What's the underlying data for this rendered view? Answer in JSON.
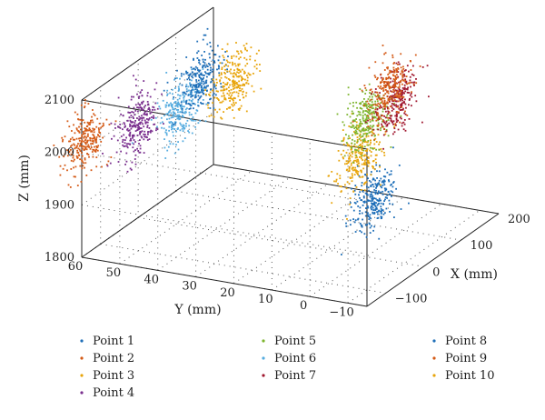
{
  "chart_data": {
    "type": "scatter",
    "projection": "3d",
    "grid": true,
    "legend_position": "bottom",
    "x_axis": {
      "label": "X (mm)",
      "range": [
        -150,
        200
      ],
      "ticks": [
        "−100",
        "0",
        "100",
        "200"
      ],
      "tick_values": [
        -100,
        0,
        100,
        200
      ]
    },
    "y_axis": {
      "label": "Y (mm)",
      "range": [
        -15,
        60
      ],
      "ticks": [
        "60",
        "50",
        "40",
        "30",
        "20",
        "10",
        "0",
        "−10"
      ],
      "tick_values": [
        60,
        50,
        40,
        30,
        20,
        10,
        0,
        -10
      ]
    },
    "z_axis": {
      "label": "Z (mm)",
      "range": [
        1800,
        2100
      ],
      "ticks": [
        "1800",
        "1900",
        "2000",
        "2100"
      ],
      "tick_values": [
        1800,
        1900,
        2000,
        2100
      ]
    },
    "series": [
      {
        "name": "Point 1",
        "color": "#1f6fb8",
        "center": {
          "x": -60,
          "y": -8,
          "z": 1950
        },
        "spread": {
          "x": 6,
          "y": 2.5,
          "z": 30
        }
      },
      {
        "name": "Point 2",
        "color": "#d45a16",
        "center": {
          "x": -120,
          "y": 62,
          "z": 2000
        },
        "spread": {
          "x": 6,
          "y": 2.5,
          "z": 30
        }
      },
      {
        "name": "Point 3",
        "color": "#e8a50c",
        "center": {
          "x": -20,
          "y": 0,
          "z": 2000
        },
        "spread": {
          "x": 6,
          "y": 2.5,
          "z": 30
        }
      },
      {
        "name": "Point 4",
        "color": "#7a2f8e",
        "center": {
          "x": -100,
          "y": 50,
          "z": 2040
        },
        "spread": {
          "x": 6,
          "y": 2.5,
          "z": 30
        }
      },
      {
        "name": "Point 5",
        "color": "#7db52e",
        "center": {
          "x": 20,
          "y": 2,
          "z": 2050
        },
        "spread": {
          "x": 6,
          "y": 2.5,
          "z": 30
        }
      },
      {
        "name": "Point 6",
        "color": "#56acdf",
        "center": {
          "x": -70,
          "y": 42,
          "z": 2060
        },
        "spread": {
          "x": 6,
          "y": 2.5,
          "z": 30
        }
      },
      {
        "name": "Point 7",
        "color": "#a0172f",
        "center": {
          "x": 80,
          "y": 0,
          "z": 2060
        },
        "spread": {
          "x": 6,
          "y": 2.5,
          "z": 30
        }
      },
      {
        "name": "Point 8",
        "color": "#1f6fb8",
        "center": {
          "x": -55,
          "y": 38,
          "z": 2120
        },
        "spread": {
          "x": 6,
          "y": 2.5,
          "z": 30
        }
      },
      {
        "name": "Point 9",
        "color": "#d45a16",
        "center": {
          "x": 100,
          "y": 4,
          "z": 2060
        },
        "spread": {
          "x": 6,
          "y": 2.5,
          "z": 30
        }
      },
      {
        "name": "Point 10",
        "color": "#e8a50c",
        "center": {
          "x": -30,
          "y": 32,
          "z": 2110
        },
        "spread": {
          "x": 6,
          "y": 2.5,
          "z": 30
        }
      }
    ]
  }
}
